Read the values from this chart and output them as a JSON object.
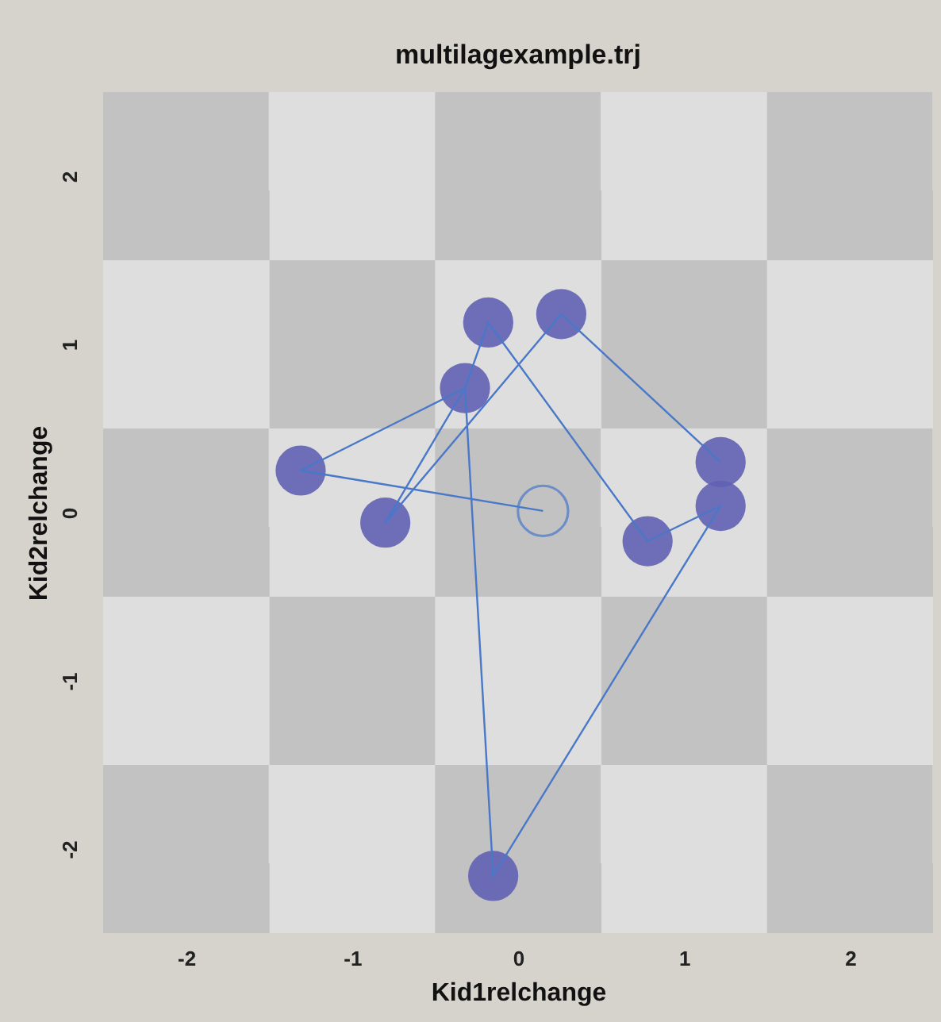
{
  "chart_data": {
    "type": "scatter",
    "title": "multilagexample.trj",
    "xlabel": "Kid1relchange",
    "ylabel": "Kid2relchange",
    "xlim": [
      -2.5,
      2.5
    ],
    "ylim": [
      -2.5,
      2.5
    ],
    "xticks": [
      -2,
      -1,
      0,
      1,
      2
    ],
    "yticks": [
      -2,
      -1,
      0,
      1,
      2
    ],
    "grid": false,
    "series": [
      {
        "type": "scatter",
        "color": "#6060b4",
        "marker": "circle",
        "x": [
          -1.31,
          -0.8,
          -0.32,
          -0.18,
          0.26,
          1.22,
          1.22,
          0.78,
          -0.15
        ],
        "values": [
          0.25,
          -0.06,
          0.74,
          1.13,
          1.18,
          0.3,
          0.04,
          -0.17,
          -2.16
        ]
      },
      {
        "type": "line",
        "color": "#4a78c8",
        "marker": "none",
        "line_style": "solid",
        "x": [
          0.15,
          -1.31,
          -0.32,
          -0.18,
          0.78,
          1.22,
          -0.15,
          -0.32,
          -0.8,
          0.26,
          1.22
        ],
        "values": [
          0.01,
          0.25,
          0.74,
          1.13,
          -0.17,
          0.04,
          -2.16,
          0.74,
          -0.06,
          1.18,
          0.3
        ]
      }
    ]
  }
}
